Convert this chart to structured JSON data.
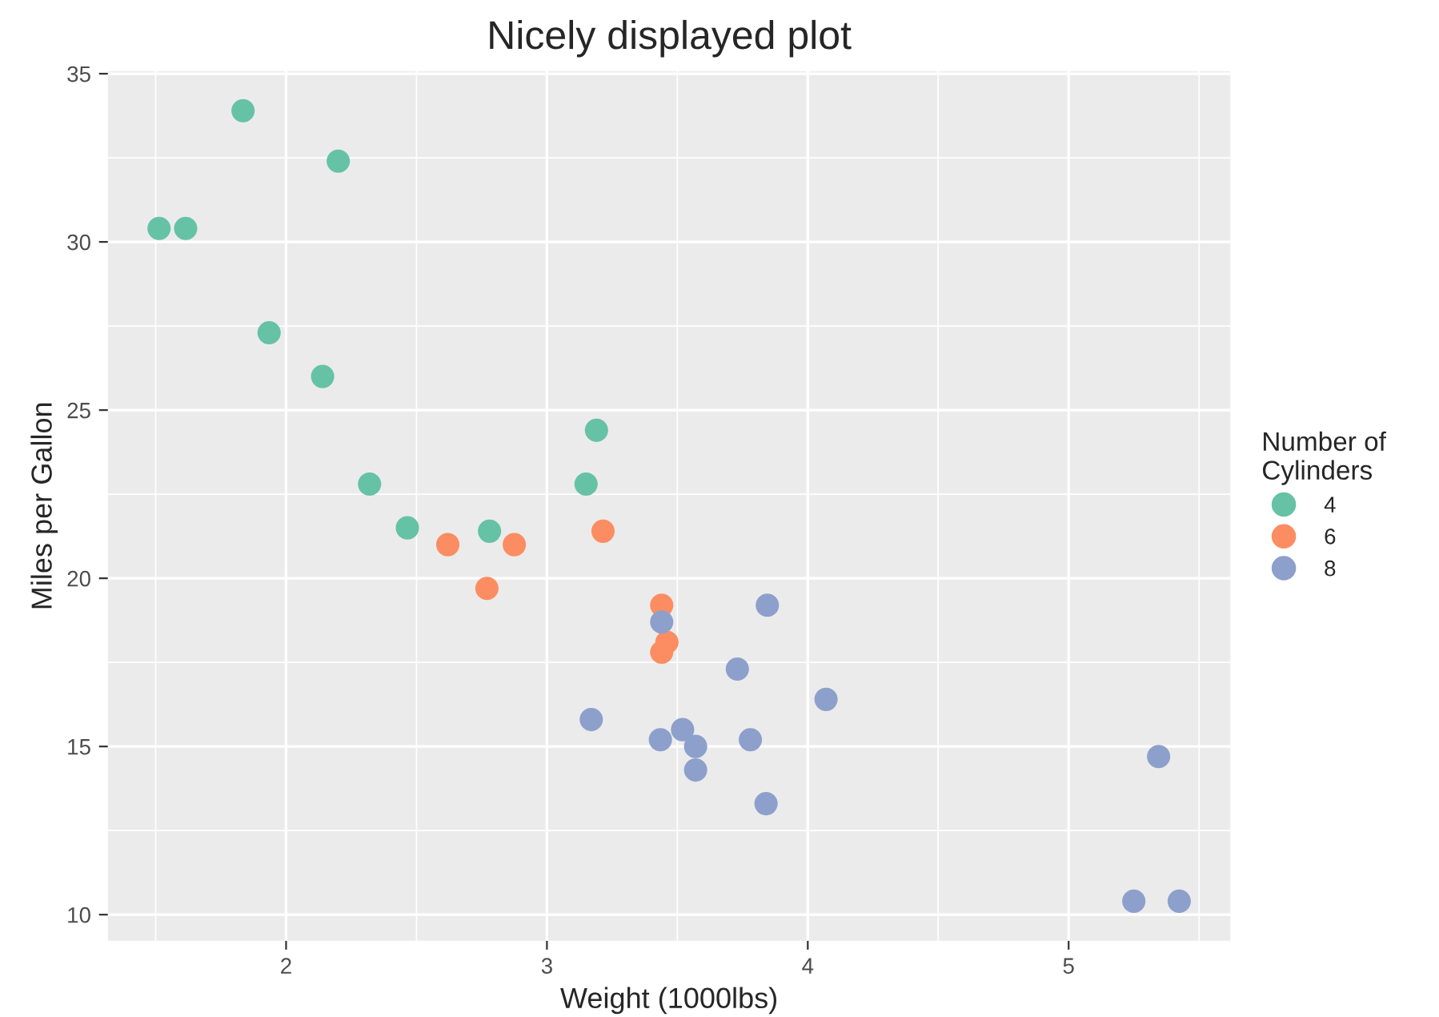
{
  "chart_data": {
    "type": "scatter",
    "title": "Nicely displayed plot",
    "xlabel": "Weight (1000lbs)",
    "ylabel": "Miles per Gallon",
    "legend_title": "Number of\nCylinders",
    "series": [
      {
        "name": "4",
        "color": "#66c2a5",
        "x": [
          2.32,
          3.19,
          3.15,
          2.2,
          1.615,
          1.835,
          2.465,
          1.935,
          2.14,
          1.513,
          2.78
        ],
        "values": [
          22.8,
          24.4,
          22.8,
          32.4,
          30.4,
          33.9,
          21.5,
          27.3,
          26.0,
          30.4,
          21.4
        ]
      },
      {
        "name": "6",
        "color": "#fc8d62",
        "x": [
          2.62,
          2.875,
          3.215,
          3.46,
          3.44,
          3.44,
          2.77
        ],
        "values": [
          21.0,
          21.0,
          21.4,
          18.1,
          19.2,
          17.8,
          19.7
        ]
      },
      {
        "name": "8",
        "color": "#8da0cb",
        "x": [
          3.44,
          3.57,
          4.07,
          3.73,
          3.78,
          5.25,
          5.424,
          5.345,
          3.52,
          3.435,
          3.84,
          3.845,
          3.17,
          3.57
        ],
        "values": [
          18.7,
          14.3,
          16.4,
          17.3,
          15.2,
          10.4,
          10.4,
          14.7,
          15.5,
          15.2,
          13.3,
          19.2,
          15.8,
          15.0
        ]
      }
    ],
    "xlim": [
      1.317,
      5.62
    ],
    "ylim": [
      9.225,
      35.075
    ],
    "xticks": [
      2,
      3,
      4,
      5
    ],
    "yticks": [
      10,
      15,
      20,
      25,
      30,
      35
    ],
    "grid": true,
    "legend": "right",
    "marker": "circle"
  }
}
